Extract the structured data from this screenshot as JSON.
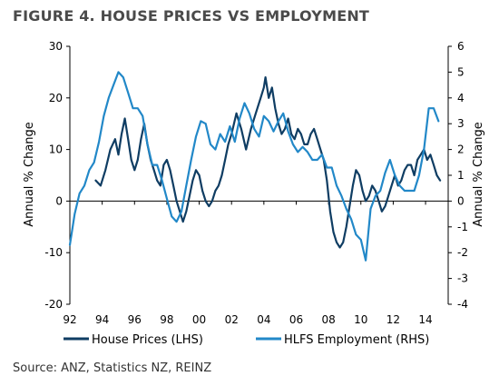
{
  "figure": {
    "title": "FIGURE 4. HOUSE PRICES VS EMPLOYMENT",
    "source": "Source: ANZ, Statistics NZ, REINZ"
  },
  "chart_data": {
    "type": "line",
    "title": "FIGURE 4. HOUSE PRICES VS EMPLOYMENT",
    "ylabel": "Annual % Change",
    "y2label": "Annual % Change",
    "xlim": [
      1992,
      2015.4
    ],
    "ylim": [
      -20,
      30
    ],
    "y2lim": [
      -4,
      6
    ],
    "x_ticks": [
      "92",
      "94",
      "96",
      "98",
      "00",
      "02",
      "04",
      "06",
      "08",
      "10",
      "12",
      "14"
    ],
    "x_tick_years": [
      1992,
      1994,
      1996,
      1998,
      2000,
      2002,
      2004,
      2006,
      2008,
      2010,
      2012,
      2014
    ],
    "y_ticks": [
      "30",
      "20",
      "10",
      "0",
      "-10",
      "-20"
    ],
    "y_tick_values": [
      30,
      20,
      10,
      0,
      -10,
      -20
    ],
    "y2_ticks": [
      "6",
      "5",
      "4",
      "3",
      "2",
      "1",
      "0",
      "-1",
      "-2",
      "-3",
      "-4"
    ],
    "y2_tick_values": [
      6,
      5,
      4,
      3,
      2,
      1,
      0,
      -1,
      -2,
      -3,
      -4
    ],
    "grid": false,
    "legend_position": "bottom",
    "series": [
      {
        "name": "House Prices (LHS)",
        "axis": "left",
        "color": "#0f3d63",
        "x": [
          1993.6,
          1993.9,
          1994.2,
          1994.5,
          1994.8,
          1995.0,
          1995.2,
          1995.4,
          1995.6,
          1995.8,
          1996.0,
          1996.2,
          1996.4,
          1996.6,
          1996.8,
          1997.0,
          1997.2,
          1997.4,
          1997.6,
          1997.8,
          1998.0,
          1998.2,
          1998.4,
          1998.6,
          1998.8,
          1999.0,
          1999.2,
          1999.4,
          1999.6,
          1999.8,
          2000.0,
          2000.2,
          2000.4,
          2000.6,
          2000.8,
          2001.0,
          2001.2,
          2001.4,
          2001.6,
          2001.8,
          2002.0,
          2002.3,
          2002.6,
          2002.9,
          2003.2,
          2003.5,
          2003.8,
          2004.0,
          2004.1,
          2004.3,
          2004.5,
          2004.7,
          2004.9,
          2005.1,
          2005.3,
          2005.5,
          2005.7,
          2005.9,
          2006.1,
          2006.3,
          2006.5,
          2006.7,
          2006.9,
          2007.1,
          2007.3,
          2007.5,
          2007.7,
          2007.9,
          2008.1,
          2008.3,
          2008.5,
          2008.7,
          2008.9,
          2009.1,
          2009.3,
          2009.5,
          2009.7,
          2009.9,
          2010.1,
          2010.3,
          2010.5,
          2010.7,
          2010.9,
          2011.1,
          2011.3,
          2011.5,
          2011.7,
          2011.9,
          2012.1,
          2012.3,
          2012.5,
          2012.7,
          2012.9,
          2013.1,
          2013.3,
          2013.5,
          2013.7,
          2013.9,
          2014.1,
          2014.3,
          2014.5,
          2014.7,
          2014.9
        ],
        "values": [
          4,
          3,
          6,
          10,
          12,
          9,
          13,
          16,
          12,
          8,
          6,
          8,
          12,
          15,
          11,
          8,
          6,
          4,
          3,
          7,
          8,
          6,
          3,
          0,
          -2,
          -4,
          -2,
          1,
          4,
          6,
          5,
          2,
          0,
          -1,
          0,
          2,
          3,
          5,
          8,
          11,
          13,
          17,
          14,
          10,
          14,
          17,
          20,
          22,
          24,
          20,
          22,
          18,
          15,
          13,
          14,
          16,
          13,
          12,
          14,
          13,
          11,
          11,
          13,
          14,
          12,
          10,
          8,
          4,
          -2,
          -6,
          -8,
          -9,
          -8,
          -5,
          -1,
          3,
          6,
          5,
          2,
          0,
          1,
          3,
          2,
          0,
          -2,
          -1,
          1,
          3,
          5,
          3,
          4,
          6,
          7,
          7,
          5,
          8,
          9,
          10,
          8,
          9,
          7,
          5,
          4
        ]
      },
      {
        "name": "HLFS Employment (RHS)",
        "axis": "right",
        "color": "#2288c8",
        "x": [
          1992.0,
          1992.3,
          1992.6,
          1992.9,
          1993.2,
          1993.5,
          1993.8,
          1994.1,
          1994.4,
          1994.7,
          1995.0,
          1995.3,
          1995.6,
          1995.9,
          1996.2,
          1996.5,
          1996.8,
          1997.1,
          1997.4,
          1997.7,
          1998.0,
          1998.3,
          1998.6,
          1998.9,
          1999.2,
          1999.5,
          1999.8,
          2000.1,
          2000.4,
          2000.7,
          2001.0,
          2001.3,
          2001.6,
          2001.9,
          2002.2,
          2002.5,
          2002.8,
          2003.1,
          2003.4,
          2003.7,
          2004.0,
          2004.3,
          2004.6,
          2004.9,
          2005.2,
          2005.5,
          2005.8,
          2006.1,
          2006.4,
          2006.7,
          2007.0,
          2007.3,
          2007.6,
          2007.9,
          2008.2,
          2008.5,
          2008.8,
          2009.1,
          2009.4,
          2009.7,
          2010.0,
          2010.3,
          2010.6,
          2010.9,
          2011.2,
          2011.5,
          2011.8,
          2012.1,
          2012.4,
          2012.7,
          2013.0,
          2013.3,
          2013.6,
          2013.9,
          2014.2,
          2014.5,
          2014.8
        ],
        "values": [
          -1.7,
          -0.5,
          0.3,
          0.6,
          1.2,
          1.5,
          2.3,
          3.3,
          4.0,
          4.5,
          5.0,
          4.8,
          4.2,
          3.6,
          3.6,
          3.3,
          2.2,
          1.4,
          1.4,
          0.8,
          0.1,
          -0.6,
          -0.8,
          -0.4,
          0.6,
          1.6,
          2.5,
          3.1,
          3.0,
          2.2,
          2.0,
          2.6,
          2.3,
          2.9,
          2.3,
          3.2,
          3.8,
          3.4,
          2.8,
          2.5,
          3.3,
          3.1,
          2.7,
          3.1,
          3.4,
          2.7,
          2.2,
          1.9,
          2.1,
          1.9,
          1.6,
          1.6,
          1.8,
          1.3,
          1.3,
          0.6,
          0.2,
          -0.3,
          -0.7,
          -1.3,
          -1.5,
          -2.3,
          -0.3,
          0.2,
          0.4,
          1.1,
          1.6,
          1.0,
          0.6,
          0.4,
          0.4,
          0.4,
          1.0,
          2.0,
          3.6,
          3.6,
          3.1
        ]
      }
    ]
  }
}
